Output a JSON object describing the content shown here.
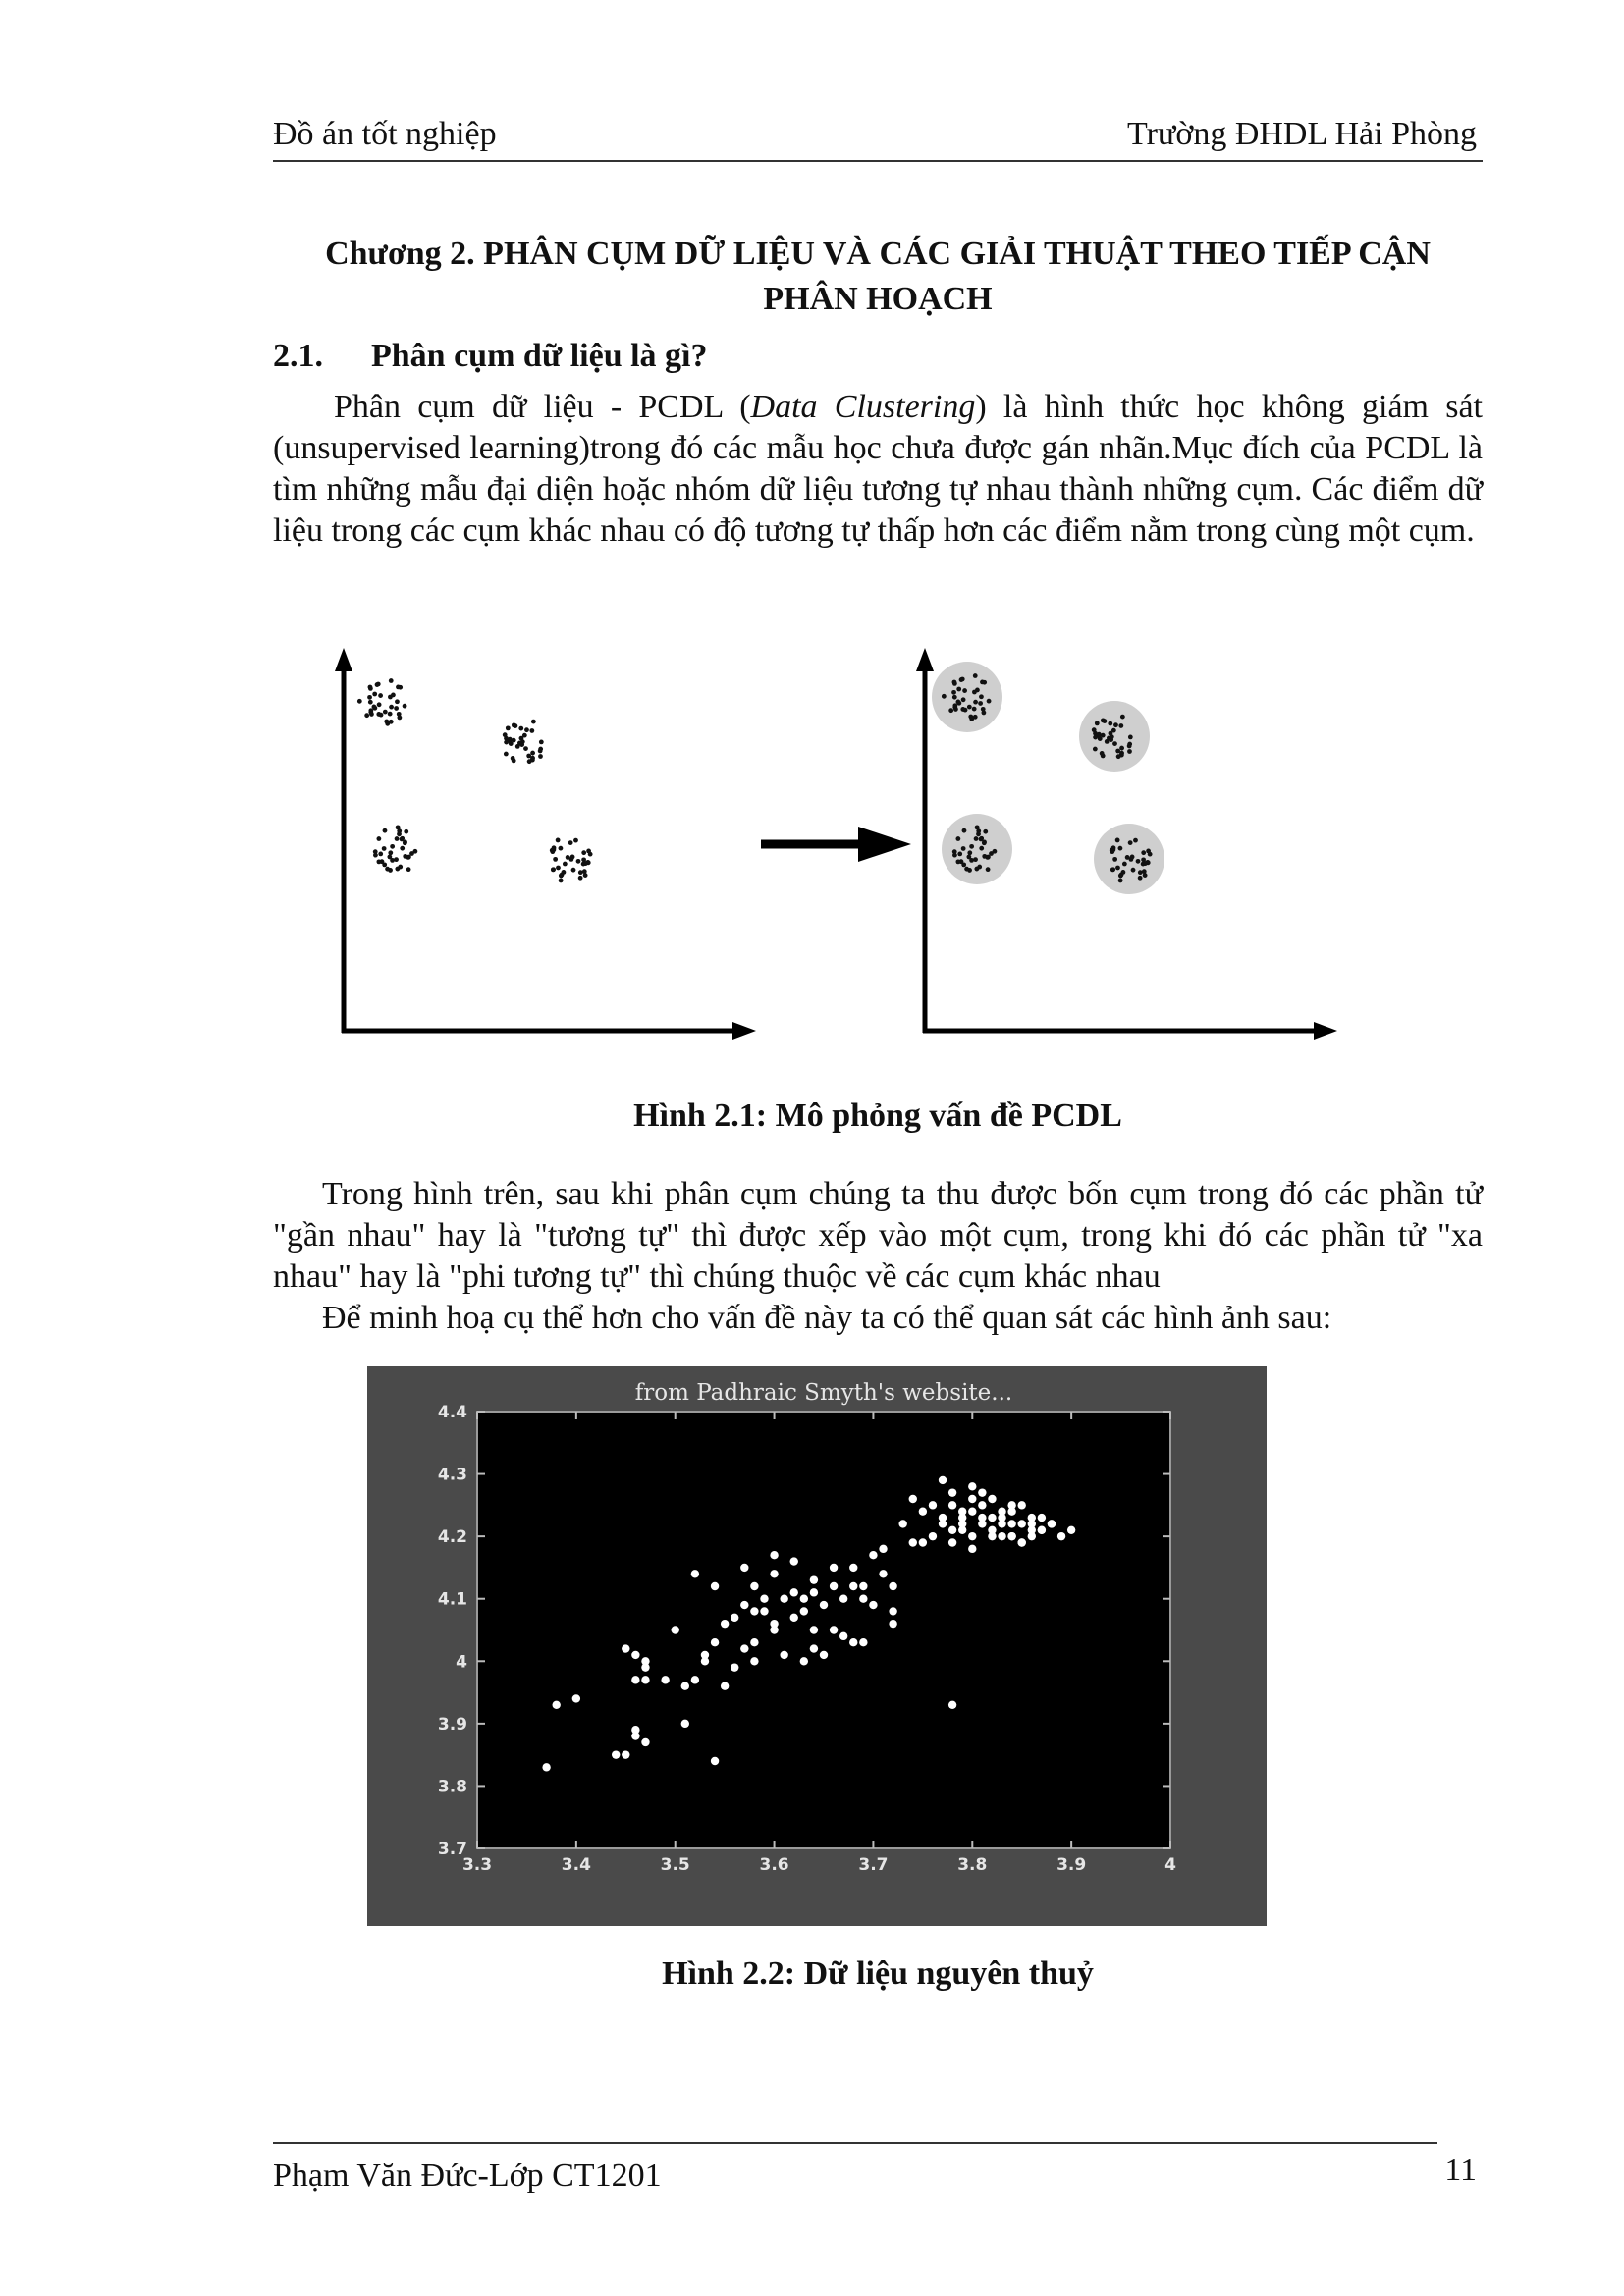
{
  "header": {
    "left": "Đồ án tốt nghiệp",
    "right": "Trường ĐHDL Hải Phòng"
  },
  "chapter": {
    "line1": "Chương 2. PHÂN CỤM DỮ LIỆU VÀ CÁC GIẢI THUẬT THEO TIẾP CẬN",
    "line2": "PHÂN  HOẠCH"
  },
  "section": {
    "number": "2.1.",
    "title": "Phân cụm dữ liệu là gì?"
  },
  "paragraph1": {
    "before_italic": "Phân cụm dữ liệu - PCDL (",
    "italic": "Data Clustering",
    "after_italic": ") là hình thức học không giám sát (unsupervised learning)trong đó các mẫu học chưa được gán nhãn.Mục đích của PCDL là tìm những mẫu đại diện hoặc nhóm dữ liệu tương tự nhau thành những cụm. Các điểm dữ liệu trong các cụm khác nhau có độ tương tự thấp hơn các điểm nằm trong cùng một cụm."
  },
  "figure1": {
    "caption": "Hình 2.1: Mô phỏng vấn đề PCDL",
    "cluster_count": 4
  },
  "paragraph2": "Trong hình trên, sau khi phân cụm chúng ta thu được bốn cụm trong đó các phần tử \"gần nhau\" hay là \"tương tự\" thì được xếp vào một cụm, trong khi đó các phần tử \"xa nhau\" hay là \"phi tương tự\" thì chúng thuộc về các cụm khác nhau",
  "paragraph3": "Để minh hoạ cụ thể hơn cho vấn đề này ta có thể quan sát các hình ảnh sau:",
  "figure2": {
    "caption": "Hình 2.2: Dữ liệu nguyên thuỷ"
  },
  "chart_data": {
    "type": "scatter",
    "title": "from Padhraic Smyth's website...",
    "xlabel": "",
    "ylabel": "",
    "xlim": [
      3.3,
      4.0
    ],
    "ylim": [
      3.7,
      4.4
    ],
    "xticks": [
      "3.3",
      "3.4",
      "3.5",
      "3.6",
      "3.7",
      "3.8",
      "3.9",
      "4"
    ],
    "yticks": [
      "3.7",
      "3.8",
      "3.9",
      "4",
      "4.1",
      "4.2",
      "4.3",
      "4.4"
    ],
    "background": "#000000",
    "point_color": "#ffffff",
    "grid": false,
    "x": [
      3.37,
      3.38,
      3.4,
      3.44,
      3.45,
      3.46,
      3.47,
      3.46,
      3.47,
      3.45,
      3.46,
      3.47,
      3.49,
      3.51,
      3.5,
      3.52,
      3.53,
      3.54,
      3.52,
      3.54,
      3.55,
      3.53,
      3.56,
      3.58,
      3.57,
      3.59,
      3.6,
      3.61,
      3.58,
      3.6,
      3.62,
      3.63,
      3.64,
      3.65,
      3.62,
      3.64,
      3.66,
      3.67,
      3.68,
      3.66,
      3.69,
      3.7,
      3.71,
      3.68,
      3.72,
      3.6,
      3.61,
      3.63,
      3.65,
      3.67,
      3.69,
      3.58,
      3.56,
      3.55,
      3.57,
      3.59,
      3.62,
      3.64,
      3.66,
      3.64,
      3.7,
      3.72,
      3.74,
      3.76,
      3.73,
      3.75,
      3.77,
      3.78,
      3.79,
      3.8,
      3.81,
      3.82,
      3.83,
      3.84,
      3.85,
      3.86,
      3.87,
      3.88,
      3.89,
      3.78,
      3.79,
      3.8,
      3.81,
      3.82,
      3.83,
      3.84,
      3.85,
      3.86,
      3.76,
      3.77,
      3.78,
      3.79,
      3.8,
      3.81,
      3.82,
      3.83,
      3.84,
      3.85,
      3.86,
      3.87,
      3.8,
      3.82,
      3.84,
      3.86,
      3.78,
      3.8,
      3.83,
      3.85,
      3.88,
      3.9,
      3.79,
      3.81,
      3.84,
      3.87,
      3.78,
      3.54,
      3.47,
      3.46,
      3.58,
      3.6,
      3.51,
      3.69,
      3.75,
      3.77,
      3.74,
      3.71,
      3.68,
      3.72,
      3.63,
      3.57
    ],
    "y": [
      3.83,
      3.93,
      3.94,
      3.85,
      3.85,
      3.88,
      3.87,
      3.97,
      4.0,
      4.02,
      4.01,
      3.97,
      3.97,
      3.9,
      4.05,
      3.97,
      4.0,
      4.03,
      4.14,
      4.12,
      4.06,
      4.01,
      4.07,
      4.03,
      4.09,
      4.08,
      4.06,
      4.1,
      4.12,
      4.14,
      4.11,
      4.08,
      4.05,
      4.09,
      4.16,
      4.13,
      4.12,
      4.1,
      4.15,
      4.05,
      4.1,
      4.09,
      4.14,
      4.03,
      4.06,
      4.05,
      4.01,
      4.0,
      4.01,
      4.04,
      4.03,
      4.0,
      3.99,
      3.96,
      4.02,
      4.1,
      4.07,
      4.11,
      4.15,
      4.02,
      4.17,
      4.12,
      4.19,
      4.2,
      4.22,
      4.24,
      4.22,
      4.25,
      4.23,
      4.24,
      4.22,
      4.21,
      4.23,
      4.25,
      4.22,
      4.2,
      4.21,
      4.22,
      4.2,
      4.27,
      4.21,
      4.26,
      4.23,
      4.2,
      4.24,
      4.22,
      4.25,
      4.21,
      4.25,
      4.23,
      4.21,
      4.22,
      4.2,
      4.25,
      4.23,
      4.22,
      4.2,
      4.19,
      4.23,
      4.21,
      4.28,
      4.26,
      4.24,
      4.22,
      4.19,
      4.18,
      4.2,
      4.19,
      4.22,
      4.21,
      4.24,
      4.27,
      4.2,
      4.23,
      3.93,
      3.84,
      3.99,
      3.89,
      4.08,
      4.17,
      3.96,
      4.12,
      4.19,
      4.29,
      4.26,
      4.18,
      4.12,
      4.08,
      4.1,
      4.15
    ]
  }
}
